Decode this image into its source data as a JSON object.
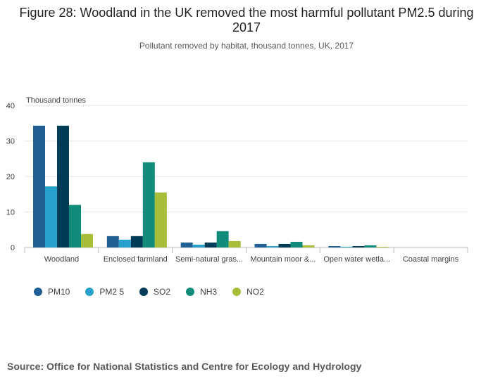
{
  "title": "Figure 28: Woodland in the UK removed the most harmful pollutant PM2.5 during 2017",
  "subtitle": "Pollutant removed by habitat, thousand tonnes, UK, 2017",
  "source": "Source: Office for National Statistics and Centre for Ecology and Hydrology",
  "chart_data": {
    "type": "bar",
    "title": "Figure 28: Woodland in the UK removed the most harmful pollutant PM2.5 during 2017",
    "subtitle": "Pollutant removed by habitat, thousand tonnes, UK, 2017",
    "ylabel": "Thousand tonnes",
    "xlabel": "",
    "ylim": [
      0,
      40
    ],
    "yticks": [
      0,
      10,
      20,
      30,
      40
    ],
    "grid": true,
    "legend": "bottom-left",
    "categories": [
      "Woodland",
      "Enclosed farmland",
      "Semi-natural gras...",
      "Mountain moor &...",
      "Open water wetla...",
      "Coastal margins"
    ],
    "series": [
      {
        "name": "PM10",
        "color": "#206095",
        "values": [
          34.3,
          3.2,
          1.4,
          1.0,
          0.4,
          0.0
        ]
      },
      {
        "name": "PM2 5",
        "color": "#27a0cc",
        "values": [
          17.2,
          2.2,
          0.8,
          0.4,
          0.2,
          0.0
        ]
      },
      {
        "name": "SO2",
        "color": "#003c57",
        "values": [
          34.3,
          3.2,
          1.4,
          1.0,
          0.4,
          0.0
        ]
      },
      {
        "name": "NH3",
        "color": "#118c7b",
        "values": [
          12.0,
          24.0,
          4.6,
          1.6,
          0.6,
          0.0
        ]
      },
      {
        "name": "NO2",
        "color": "#a8bd3a",
        "values": [
          3.8,
          15.5,
          1.8,
          0.6,
          0.2,
          0.0
        ]
      }
    ]
  }
}
